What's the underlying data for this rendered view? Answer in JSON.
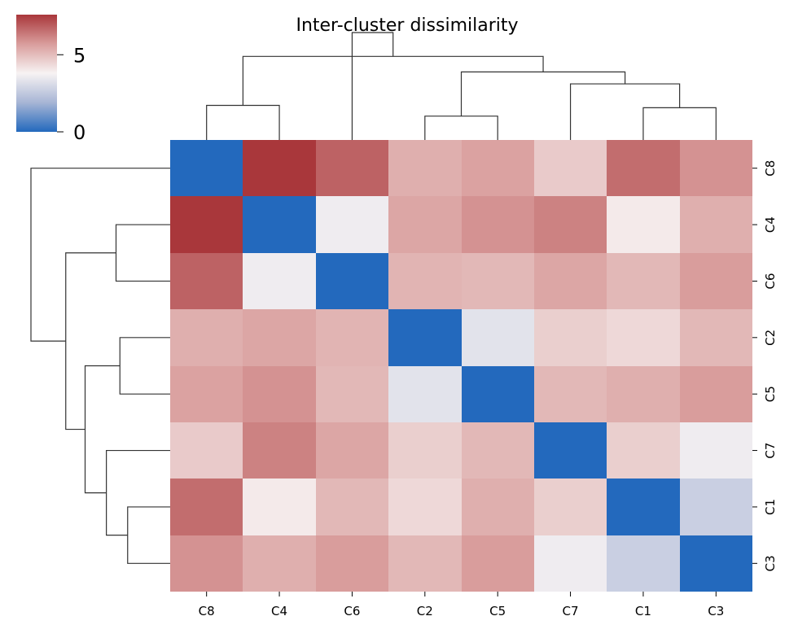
{
  "chart_data": {
    "type": "heatmap",
    "title": "Inter-cluster dissimilarity",
    "labels": [
      "C8",
      "C4",
      "C6",
      "C2",
      "C5",
      "C7",
      "C1",
      "C3"
    ],
    "values": [
      [
        0.0,
        7.6,
        6.8,
        5.3,
        5.6,
        4.7,
        6.6,
        5.9
      ],
      [
        7.6,
        0.0,
        3.6,
        5.5,
        5.9,
        6.2,
        4.0,
        5.3
      ],
      [
        6.8,
        3.6,
        0.0,
        5.2,
        5.1,
        5.5,
        5.1,
        5.7
      ],
      [
        5.3,
        5.5,
        5.2,
        0.0,
        3.3,
        4.6,
        4.4,
        5.1
      ],
      [
        5.6,
        5.9,
        5.1,
        3.3,
        0.0,
        5.1,
        5.3,
        5.7
      ],
      [
        4.7,
        6.2,
        5.5,
        4.6,
        5.1,
        0.0,
        4.6,
        3.6
      ],
      [
        6.6,
        4.0,
        5.1,
        4.4,
        5.3,
        4.6,
        0.0,
        2.7
      ],
      [
        5.9,
        5.3,
        5.7,
        5.1,
        5.7,
        3.6,
        2.7,
        0.0
      ]
    ],
    "colormap": "vlag",
    "colors": {
      "low": "#2369bd",
      "mid": "#f7f3f3",
      "high": "#a9373b"
    },
    "vmin": 0,
    "vmax": 7.6,
    "colorbar": {
      "ticks": [
        0,
        5
      ],
      "placement": "top-left"
    },
    "col_dendrogram": [
      {
        "left": 0,
        "right": 1,
        "height": 1.45
      },
      {
        "left": 3,
        "right": 4,
        "height": 1.0
      },
      {
        "left": 6,
        "right": 7,
        "height": 1.35
      },
      {
        "left": 5,
        "right": [
          6,
          7
        ],
        "height": 2.35
      },
      {
        "left": [
          3,
          4
        ],
        "right": [
          5,
          6,
          7
        ],
        "height": 2.85
      },
      {
        "left": [
          0,
          1
        ],
        "right": [
          3,
          4,
          5,
          6,
          7
        ],
        "height": 3.5
      },
      {
        "left": 2,
        "right": [
          0,
          1,
          3,
          4,
          5,
          6,
          7
        ],
        "height": 4.5
      }
    ],
    "row_dendrogram": [
      {
        "top": 1,
        "bottom": 2,
        "height": 1.4
      },
      {
        "top": 3,
        "bottom": 4,
        "height": 1.3
      },
      {
        "top": 6,
        "bottom": 7,
        "height": 1.1
      },
      {
        "top": 5,
        "bottom": [
          6,
          7
        ],
        "height": 1.65
      },
      {
        "top": [
          3,
          4
        ],
        "bottom": [
          5,
          6,
          7
        ],
        "height": 2.2
      },
      {
        "top": [
          1,
          2
        ],
        "bottom": [
          3,
          4,
          5,
          6,
          7
        ],
        "height": 2.7
      },
      {
        "top": 0,
        "bottom": [
          1,
          2,
          3,
          4,
          5,
          6,
          7
        ],
        "height": 3.6
      }
    ]
  }
}
